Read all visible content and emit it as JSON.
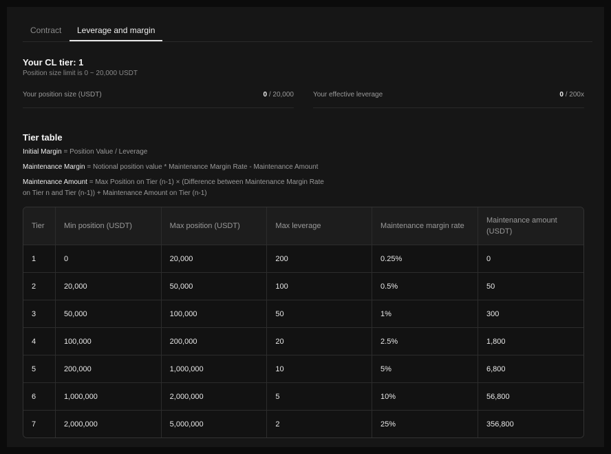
{
  "tabs": [
    "Contract",
    "Leverage and margin"
  ],
  "header": {
    "title": "Your CL tier: 1",
    "subtitle": "Position size limit is 0 ~ 20,000 USDT"
  },
  "stats": [
    {
      "label": "Your position size (USDT)",
      "value": "0",
      "limit": "/ 20,000"
    },
    {
      "label": "Your effective leverage",
      "value": "0",
      "limit": "/ 200x"
    }
  ],
  "tier_table": {
    "title": "Tier table",
    "formulas": [
      {
        "term": "Initial Margin",
        "text": "= Position Value / Leverage"
      },
      {
        "term": "Maintenance Margin",
        "text": "= Notional position value * Maintenance Margin Rate - Maintenance Amount"
      },
      {
        "term": "Maintenance Amount",
        "text": "= Max Position on Tier (n-1) × (Difference between Maintenance Margin Rate on Tier n and Tier (n-1)) + Maintenance Amount on Tier (n-1)"
      }
    ],
    "columns": [
      "Tier",
      "Min position (USDT)",
      "Max position (USDT)",
      "Max leverage",
      "Maintenance margin rate",
      "Maintenance amount (USDT)"
    ],
    "rows": [
      [
        "1",
        "0",
        "20,000",
        "200",
        "0.25%",
        "0"
      ],
      [
        "2",
        "20,000",
        "50,000",
        "100",
        "0.5%",
        "50"
      ],
      [
        "3",
        "50,000",
        "100,000",
        "50",
        "1%",
        "300"
      ],
      [
        "4",
        "100,000",
        "200,000",
        "20",
        "2.5%",
        "1,800"
      ],
      [
        "5",
        "200,000",
        "1,000,000",
        "10",
        "5%",
        "6,800"
      ],
      [
        "6",
        "1,000,000",
        "2,000,000",
        "5",
        "10%",
        "56,800"
      ],
      [
        "7",
        "2,000,000",
        "5,000,000",
        "2",
        "25%",
        "356,800"
      ]
    ]
  }
}
